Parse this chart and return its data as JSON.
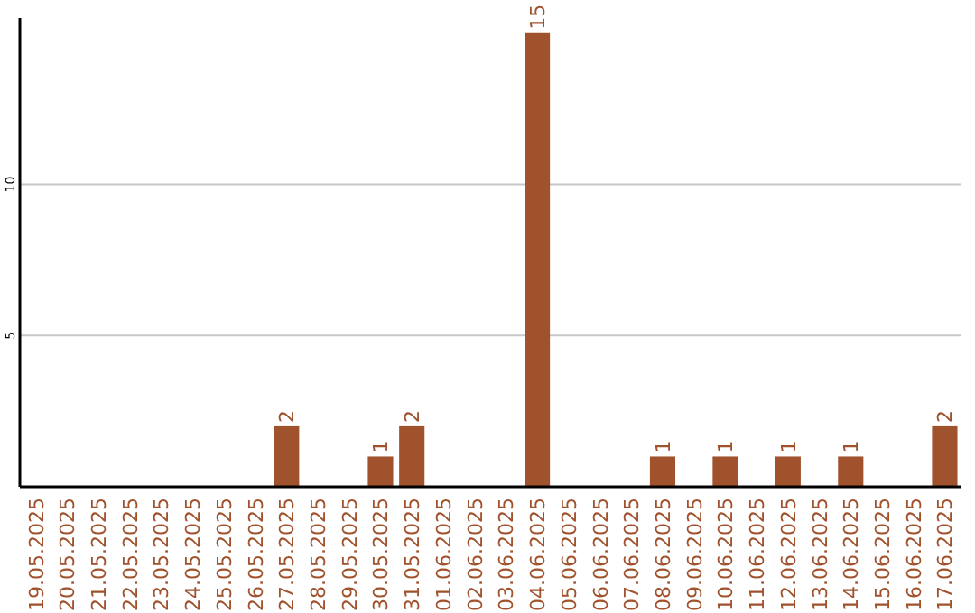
{
  "chart_data": {
    "type": "bar",
    "categories": [
      "19.05.2025",
      "20.05.2025",
      "21.05.2025",
      "22.05.2025",
      "23.05.2025",
      "24.05.2025",
      "25.05.2025",
      "26.05.2025",
      "27.05.2025",
      "28.05.2025",
      "29.05.2025",
      "30.05.2025",
      "31.05.2025",
      "01.06.2025",
      "02.06.2025",
      "03.06.2025",
      "04.06.2025",
      "05.06.2025",
      "06.06.2025",
      "07.06.2025",
      "08.06.2025",
      "09.06.2025",
      "10.06.2025",
      "11.06.2025",
      "12.06.2025",
      "13.06.2025",
      "14.06.2025",
      "15.06.2025",
      "16.06.2025",
      "17.06.2025"
    ],
    "values": [
      0,
      0,
      0,
      0,
      0,
      0,
      0,
      0,
      2,
      0,
      0,
      1,
      2,
      0,
      0,
      0,
      15,
      0,
      0,
      0,
      1,
      0,
      1,
      0,
      1,
      0,
      1,
      0,
      0,
      2
    ],
    "value_labels": [
      null,
      null,
      null,
      null,
      null,
      null,
      null,
      null,
      "2",
      null,
      null,
      "1",
      "2",
      null,
      null,
      null,
      "15",
      null,
      null,
      null,
      "1",
      null,
      "1",
      null,
      "1",
      null,
      "1",
      null,
      null,
      "2"
    ],
    "color": "#a0522d",
    "ylim": [
      0,
      15.5
    ],
    "yticks": [
      5,
      10
    ],
    "grid": "y"
  }
}
